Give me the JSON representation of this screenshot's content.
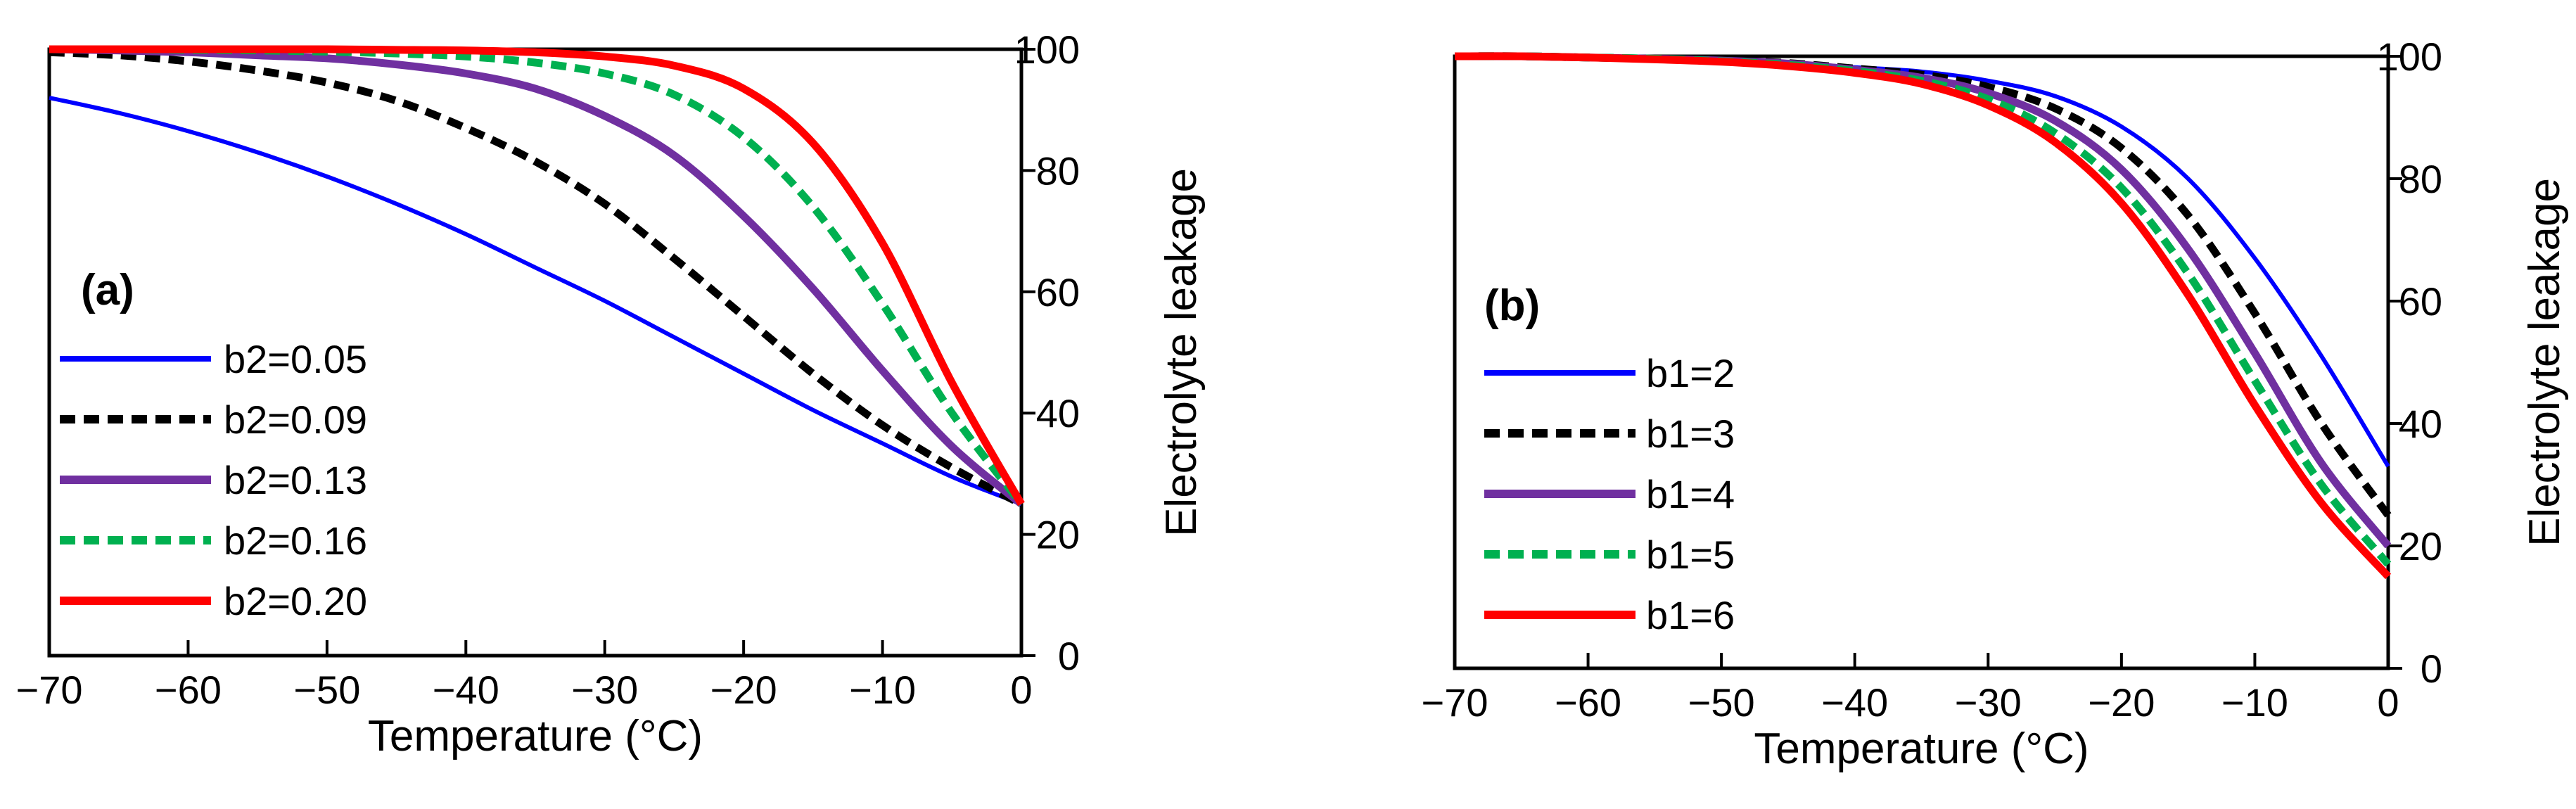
{
  "chart_data": [
    {
      "type": "line",
      "panel_label": "(a)",
      "xlabel": "Temperature (°C)",
      "ylabel": "Electrolyte leakage",
      "xlim": [
        -70,
        0
      ],
      "ylim": [
        0,
        100
      ],
      "x_ticks": [
        "−70",
        "−60",
        "−50",
        "−40",
        "−30",
        "−20",
        "−10",
        "0"
      ],
      "y_ticks": [
        "0",
        "20",
        "40",
        "60",
        "80",
        "100"
      ],
      "y_axis_side": "right",
      "legend_position": "left",
      "x": [
        -70,
        -65,
        -60,
        -55,
        -50,
        -45,
        -40,
        -35,
        -30,
        -25,
        -20,
        -15,
        -10,
        -5,
        0
      ],
      "series": [
        {
          "name": "b2=0.05",
          "color": "#0000FF",
          "style": "solid",
          "values": [
            92,
            89.5,
            86.5,
            83,
            79,
            74.5,
            69.5,
            64,
            58.5,
            52.5,
            46.5,
            40.5,
            35,
            29.5,
            25
          ]
        },
        {
          "name": "b2=0.09",
          "color": "#000000",
          "style": "dashed",
          "values": [
            99.5,
            99,
            98,
            96.5,
            94.5,
            91.5,
            87,
            81.5,
            74.5,
            65.5,
            56,
            46.5,
            38,
            31,
            25
          ]
        },
        {
          "name": "b2=0.13",
          "color": "#7030A0",
          "style": "solid",
          "values": [
            100,
            99.8,
            99.5,
            99,
            98.5,
            97.5,
            96,
            93.5,
            89,
            82.5,
            72.5,
            60.5,
            47,
            34.5,
            25
          ]
        },
        {
          "name": "b2=0.16",
          "color": "#00B050",
          "style": "dashed",
          "values": [
            100,
            100,
            99.9,
            99.8,
            99.6,
            99.3,
            98.8,
            97.8,
            96,
            92.5,
            85.5,
            74,
            58,
            40,
            25
          ]
        },
        {
          "name": "b2=0.20",
          "color": "#FF0000",
          "style": "solid",
          "values": [
            100,
            100,
            100,
            100,
            100,
            99.9,
            99.8,
            99.5,
            98.8,
            97.3,
            93.5,
            84.5,
            68,
            45,
            25
          ]
        }
      ]
    },
    {
      "type": "line",
      "panel_label": "(b)",
      "xlabel": "Temperature (°C)",
      "ylabel": "Electrolyte leakage",
      "xlim": [
        -70,
        0
      ],
      "ylim": [
        0,
        100
      ],
      "x_ticks": [
        "−70",
        "−60",
        "−50",
        "−40",
        "−30",
        "−20",
        "−10",
        "0"
      ],
      "y_ticks": [
        "0",
        "20",
        "40",
        "60",
        "80",
        "100"
      ],
      "y_axis_side": "right",
      "legend_position": "left",
      "x": [
        -70,
        -65,
        -60,
        -55,
        -50,
        -45,
        -40,
        -35,
        -30,
        -25,
        -20,
        -15,
        -10,
        -5,
        0
      ],
      "series": [
        {
          "name": "b1=2",
          "color": "#0000FF",
          "style": "solid",
          "values": [
            100,
            100,
            99.8,
            99.6,
            99.3,
            98.9,
            98.2,
            97.5,
            96,
            93.5,
            88.5,
            80,
            67,
            51,
            33
          ]
        },
        {
          "name": "b1=3",
          "color": "#000000",
          "style": "dashed",
          "values": [
            100,
            100,
            99.8,
            99.6,
            99.3,
            98.9,
            98,
            97,
            95,
            91.5,
            85,
            74,
            58,
            40,
            25
          ]
        },
        {
          "name": "b1=4",
          "color": "#7030A0",
          "style": "solid",
          "values": [
            100,
            100,
            99.8,
            99.6,
            99.3,
            98.8,
            97.8,
            96.5,
            94,
            89.5,
            81.5,
            68.5,
            51.5,
            33.5,
            20
          ]
        },
        {
          "name": "b1=5",
          "color": "#00B050",
          "style": "dashed",
          "values": [
            100,
            100,
            99.8,
            99.6,
            99.2,
            98.6,
            97.6,
            96,
            93,
            87.5,
            78.5,
            64.5,
            47,
            30,
            17
          ]
        },
        {
          "name": "b1=6",
          "color": "#FF0000",
          "style": "solid",
          "values": [
            100,
            100,
            99.8,
            99.5,
            99.1,
            98.4,
            97.3,
            95.5,
            92,
            86,
            76,
            61,
            43,
            27,
            15
          ]
        }
      ]
    }
  ]
}
